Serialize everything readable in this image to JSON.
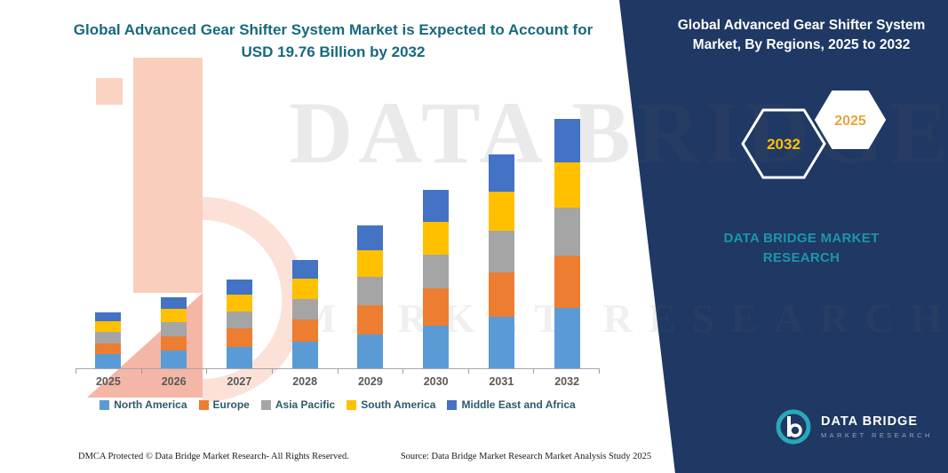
{
  "left_panel": {
    "title": "Global Advanced Gear Shifter System Market is Expected to Account for USD 19.76 Billion by 2032",
    "watermark_line1": "DATA BRIDGE",
    "watermark_line2": "MARKET RESEARCH",
    "footer_dmca": "DMCA Protected © Data Bridge Market Research-  All Rights Reserved.",
    "footer_source": "Source: Data Bridge Market Research  Market Analysis Study 2025"
  },
  "right_panel": {
    "title": "Global Advanced Gear Shifter System Market, By Regions, 2025 to 2032",
    "hexagon_back_label": "2032",
    "hexagon_front_label": "2025",
    "brand_text": "DATA BRIDGE MARKET RESEARCH",
    "logo_name": "DATA BRIDGE",
    "logo_tagline": "MARKET RESEARCH"
  },
  "colors": {
    "title_teal": "#17697E",
    "panel_navy": "#1F3864",
    "brand_teal": "#1D95AA",
    "hexagon_year_gold": "#FFC000"
  },
  "chart_data": {
    "type": "bar",
    "stacked": true,
    "title": "Global Advanced Gear Shifter System Market is Expected to Account for USD 19.76 Billion by 2032",
    "unit": "USD Billion",
    "categories": [
      "2025",
      "2026",
      "2027",
      "2028",
      "2029",
      "2030",
      "2031",
      "2032"
    ],
    "series": [
      {
        "name": "North America",
        "color": "#5B9BD5",
        "values": [
          1.1,
          1.4,
          1.7,
          2.1,
          2.7,
          3.4,
          4.1,
          4.8
        ]
      },
      {
        "name": "Europe",
        "color": "#ED7D31",
        "values": [
          0.9,
          1.15,
          1.45,
          1.75,
          2.3,
          2.9,
          3.5,
          4.1
        ]
      },
      {
        "name": "Asia Pacific",
        "color": "#A5A5A5",
        "values": [
          0.85,
          1.1,
          1.35,
          1.65,
          2.2,
          2.7,
          3.3,
          3.8
        ]
      },
      {
        "name": "South America",
        "color": "#FFC000",
        "values": [
          0.85,
          1.05,
          1.3,
          1.6,
          2.1,
          2.6,
          3.1,
          3.6
        ]
      },
      {
        "name": "Middle East and Africa",
        "color": "#4472C4",
        "values": [
          0.75,
          0.95,
          1.25,
          1.5,
          2.0,
          2.5,
          2.95,
          3.46
        ]
      }
    ],
    "totals": [
      4.45,
      5.65,
      7.05,
      8.6,
      11.3,
      14.1,
      16.95,
      19.76
    ],
    "ylim": [
      0,
      20
    ],
    "gridlines": false,
    "legend_position": "bottom"
  }
}
